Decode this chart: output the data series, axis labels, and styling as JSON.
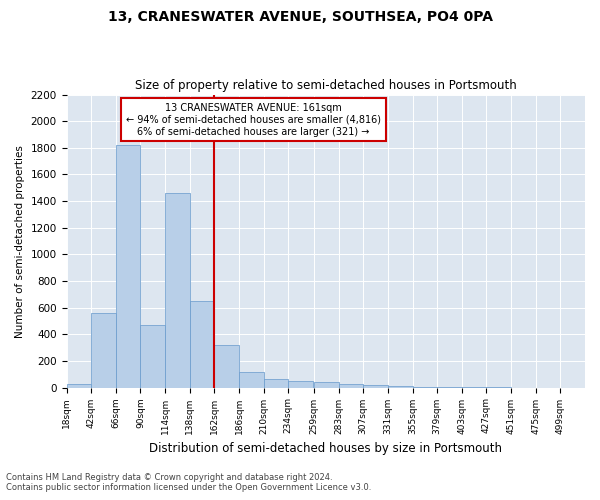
{
  "title": "13, CRANESWATER AVENUE, SOUTHSEA, PO4 0PA",
  "subtitle": "Size of property relative to semi-detached houses in Portsmouth",
  "xlabel": "Distribution of semi-detached houses by size in Portsmouth",
  "ylabel": "Number of semi-detached properties",
  "footnote1": "Contains HM Land Registry data © Crown copyright and database right 2024.",
  "footnote2": "Contains public sector information licensed under the Open Government Licence v3.0.",
  "annotation_title": "13 CRANESWATER AVENUE: 161sqm",
  "annotation_line1": "← 94% of semi-detached houses are smaller (4,816)",
  "annotation_line2": "6% of semi-detached houses are larger (321) →",
  "categories": [
    "18sqm",
    "42sqm",
    "66sqm",
    "90sqm",
    "114sqm",
    "138sqm",
    "162sqm",
    "186sqm",
    "210sqm",
    "234sqm",
    "259sqm",
    "283sqm",
    "307sqm",
    "331sqm",
    "355sqm",
    "379sqm",
    "403sqm",
    "427sqm",
    "451sqm",
    "475sqm",
    "499sqm"
  ],
  "bin_starts": [
    18,
    42,
    66,
    90,
    114,
    138,
    162,
    186,
    210,
    234,
    259,
    283,
    307,
    331,
    355,
    379,
    403,
    427,
    451,
    475,
    499
  ],
  "bin_width": 24,
  "values": [
    30,
    560,
    1820,
    470,
    1460,
    650,
    320,
    115,
    65,
    50,
    40,
    28,
    18,
    12,
    5,
    3,
    2,
    1,
    0,
    0,
    0
  ],
  "bar_color": "#b8cfe8",
  "bar_edge_color": "#6699cc",
  "vline_color": "#cc0000",
  "vline_x": 162,
  "annotation_box_color": "#cc0000",
  "background_color": "#dde6f0",
  "ylim": [
    0,
    2200
  ],
  "yticks": [
    0,
    200,
    400,
    600,
    800,
    1000,
    1200,
    1400,
    1600,
    1800,
    2000,
    2200
  ],
  "fig_width": 6.0,
  "fig_height": 5.0,
  "dpi": 100
}
